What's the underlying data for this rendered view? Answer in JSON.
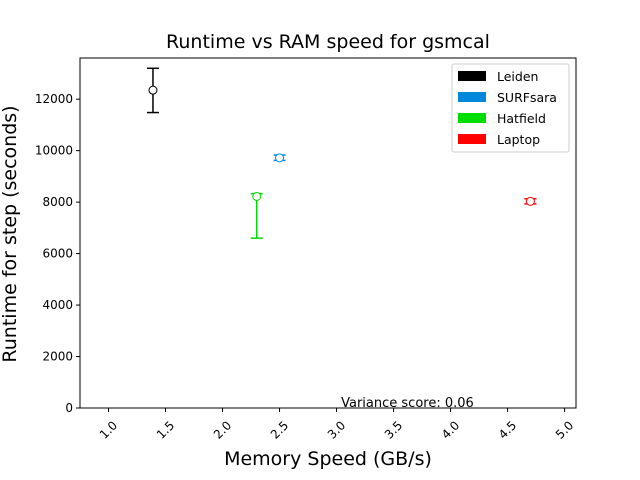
{
  "chart_data": {
    "type": "scatter",
    "title": "Runtime vs RAM speed for gsmcal",
    "xlabel": "Memory Speed (GB/s)",
    "ylabel": "Runtime for step (seconds)",
    "xlim": [
      0.75,
      5.1
    ],
    "ylim": [
      0,
      13600
    ],
    "xticks": [
      1.0,
      1.5,
      2.0,
      2.5,
      3.0,
      3.5,
      4.0,
      4.5,
      5.0
    ],
    "xtick_labels": [
      "1.0",
      "1.5",
      "2.0",
      "2.5",
      "3.0",
      "3.5",
      "4.0",
      "4.5",
      "5.0"
    ],
    "yticks": [
      0,
      2000,
      4000,
      6000,
      8000,
      10000,
      12000
    ],
    "ytick_labels": [
      "0",
      "2000",
      "4000",
      "6000",
      "8000",
      "10000",
      "12000"
    ],
    "grid": false,
    "legend_position": "top-right",
    "series": [
      {
        "name": "Leiden",
        "color": "#000000",
        "x": 1.39,
        "y": 12350,
        "err_low": 11480,
        "err_high": 13200
      },
      {
        "name": "SURFsara",
        "color": "#0088dd",
        "x": 2.5,
        "y": 9720,
        "err_low": 9620,
        "err_high": 9830
      },
      {
        "name": "Hatfield",
        "color": "#00dd00",
        "x": 2.3,
        "y": 8220,
        "err_low": 6600,
        "err_high": 8330
      },
      {
        "name": "Laptop",
        "color": "#ff0000",
        "x": 4.7,
        "y": 8030,
        "err_low": 7930,
        "err_high": 8130
      }
    ],
    "annotations": [
      {
        "text": "Variance score: 0.06",
        "x": 3.04,
        "y": 0
      }
    ]
  }
}
